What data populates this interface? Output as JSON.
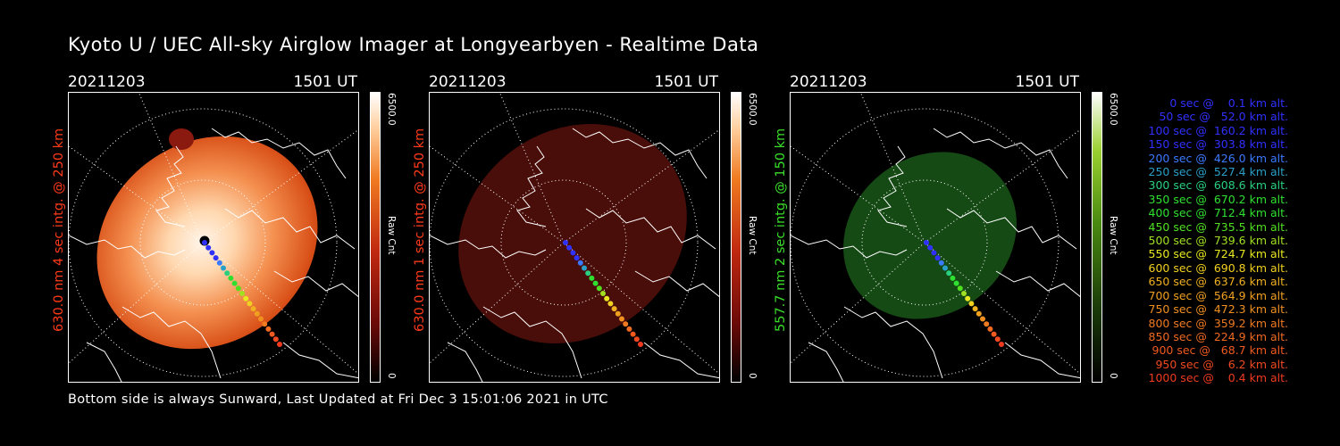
{
  "header": {
    "title": "Kyoto U / UEC All-sky Airglow Imager at Longyearbyen - Realtime Data"
  },
  "footer": {
    "text": "Bottom side is always Sunward, Last Updated at Fri Dec  3 15:01:06 2021 in UTC"
  },
  "panels": [
    {
      "date": "20211203",
      "time": "1501 UT",
      "label": "630.0 nm  4 sec intg. @ 250 km",
      "label_color": "#ff3a1a",
      "colorbar_max": "6500.0",
      "colorbar_unit": "Raw Cnt",
      "colorbar_min": "0"
    },
    {
      "date": "20211203",
      "time": "1501 UT",
      "label": "630.0 nm  1 sec intg. @ 250 km",
      "label_color": "#ff3a1a",
      "colorbar_max": "6500.0",
      "colorbar_unit": "Raw Cnt",
      "colorbar_min": "0"
    },
    {
      "date": "20211203",
      "time": "1501 UT",
      "label": "557.7 nm  2 sec intg. @ 150 km",
      "label_color": "#3adf2a",
      "colorbar_max": "6500.0",
      "colorbar_unit": "Raw Cnt",
      "colorbar_min": "0"
    }
  ],
  "legend": [
    {
      "text": "   0 sec @    0.1 km alt.",
      "color": "#3030ff"
    },
    {
      "text": "  50 sec @   52.0 km alt.",
      "color": "#3030ff"
    },
    {
      "text": " 100 sec @  160.2 km alt.",
      "color": "#3030ff"
    },
    {
      "text": " 150 sec @  303.8 km alt.",
      "color": "#3030ff"
    },
    {
      "text": " 200 sec @  426.0 km alt.",
      "color": "#3a7aff"
    },
    {
      "text": " 250 sec @  527.4 km alt.",
      "color": "#2aa0c8"
    },
    {
      "text": " 300 sec @  608.6 km alt.",
      "color": "#2ad080"
    },
    {
      "text": " 350 sec @  670.2 km alt.",
      "color": "#30e030"
    },
    {
      "text": " 400 sec @  712.4 km alt.",
      "color": "#30e030"
    },
    {
      "text": " 450 sec @  735.5 km alt.",
      "color": "#50e020"
    },
    {
      "text": " 500 sec @  739.6 km alt.",
      "color": "#a0e020"
    },
    {
      "text": " 550 sec @  724.7 km alt.",
      "color": "#e8e820"
    },
    {
      "text": " 600 sec @  690.8 km alt.",
      "color": "#f0d020"
    },
    {
      "text": " 650 sec @  637.6 km alt.",
      "color": "#f0b020"
    },
    {
      "text": " 700 sec @  564.9 km alt.",
      "color": "#f0a020"
    },
    {
      "text": " 750 sec @  472.3 km alt.",
      "color": "#f09020"
    },
    {
      "text": " 800 sec @  359.2 km alt.",
      "color": "#f07a20"
    },
    {
      "text": " 850 sec @  224.9 km alt.",
      "color": "#f06a20"
    },
    {
      "text": " 900 sec @   68.7 km alt.",
      "color": "#f05a20"
    },
    {
      "text": " 950 sec @    6.2 km alt.",
      "color": "#f04a20"
    },
    {
      "text": "1000 sec @    0.4 km alt.",
      "color": "#f03a20"
    }
  ],
  "colors": {
    "red_bright": "#ffe8c8",
    "red_mid": "#f07a20",
    "red_dark": "#6a0f0a",
    "green": "#1a6a1a",
    "background": "#000000"
  }
}
